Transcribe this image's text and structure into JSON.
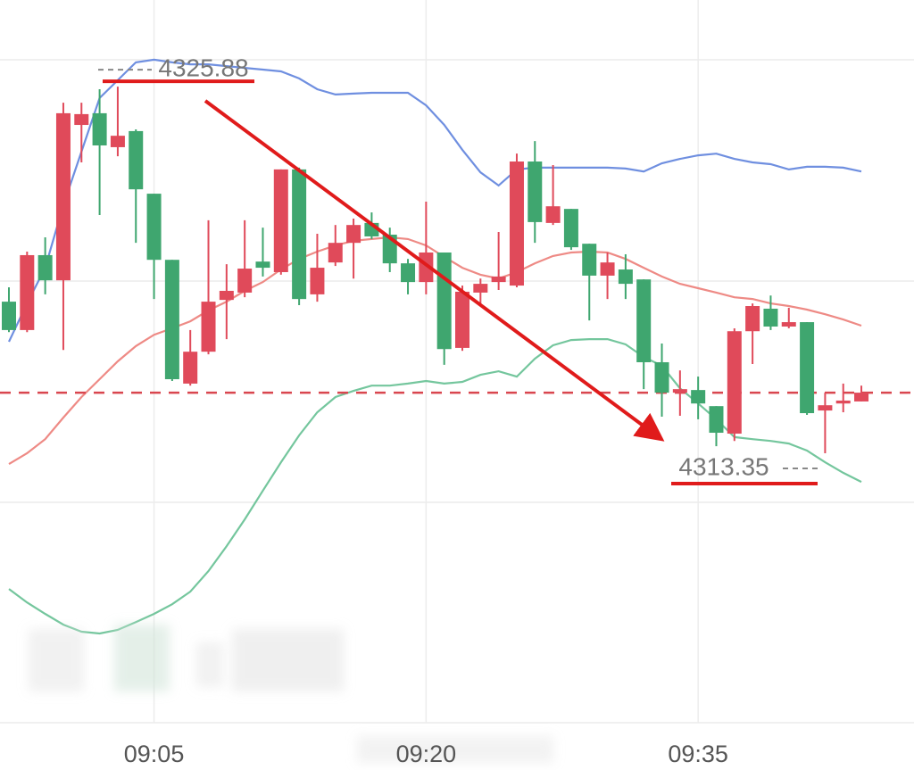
{
  "chart_data": {
    "type": "candlestick",
    "categories": [
      null,
      null,
      null,
      null,
      null,
      null,
      null,
      null,
      "09:05",
      null,
      null,
      null,
      null,
      null,
      null,
      null,
      null,
      null,
      null,
      null,
      null,
      null,
      null,
      "09:20",
      null,
      null,
      null,
      null,
      null,
      null,
      null,
      null,
      null,
      null,
      null,
      null,
      null,
      null,
      "09:35",
      null,
      null,
      null,
      null,
      null,
      null,
      null,
      null,
      null
    ],
    "open": [
      4318.53,
      4317.56,
      4320.12,
      4319.26,
      4324.57,
      4324.97,
      4323.81,
      4324.36,
      4322.22,
      4319.96,
      4315.73,
      4316.82,
      4318.59,
      4318.84,
      4319.9,
      4319.54,
      4323.05,
      4318.78,
      4319.87,
      4320.54,
      4321.22,
      4320.82,
      4319.84,
      4319.2,
      4320.21,
      4316.95,
      4318.84,
      4319.2,
      4319.08,
      4323.32,
      4321.22,
      4321.7,
      4320.51,
      4319.42,
      4319.63,
      4319.29,
      4316.46,
      4315.42,
      4315.51,
      4314.96,
      4314.02,
      4317.52,
      4318.29,
      4317.68,
      4317.83,
      4314.81,
      4315.05,
      4315.12
    ],
    "high": [
      4319.02,
      4320.24,
      4320.73,
      4325.33,
      4325.33,
      4325.79,
      4325.88,
      4324.42,
      4322.22,
      4319.96,
      4317.56,
      4321.31,
      4319.81,
      4321.31,
      4321.06,
      4323.05,
      4323.11,
      4320.85,
      4321.15,
      4321.37,
      4321.58,
      4321.06,
      4319.99,
      4321.95,
      4320.21,
      4319.08,
      4319.32,
      4320.91,
      4323.59,
      4324.02,
      4323.2,
      4321.7,
      4320.51,
      4320.21,
      4320.15,
      4319.29,
      4317.1,
      4316.18,
      4315.97,
      4314.96,
      4317.62,
      4318.47,
      4318.74,
      4318.32,
      4317.83,
      4315.42,
      4315.73,
      4315.66
    ],
    "low": [
      4317.49,
      4317.49,
      4318.78,
      4316.88,
      4323.29,
      4321.49,
      4323.5,
      4320.54,
      4318.62,
      4315.82,
      4315.66,
      4316.73,
      4317.25,
      4318.68,
      4319.39,
      4319.45,
      4318.41,
      4318.53,
      4319.75,
      4319.32,
      4320.67,
      4319.54,
      4318.78,
      4318.78,
      4316.37,
      4316.85,
      4318.47,
      4318.93,
      4319.02,
      4320.54,
      4321.15,
      4320.3,
      4317.89,
      4318.62,
      4318.62,
      4315.54,
      4314.6,
      4314.63,
      4314.51,
      4313.59,
      4313.77,
      4316.4,
      4317.56,
      4317.62,
      4314.66,
      4313.35,
      4314.75,
      4315.12
    ],
    "close": [
      4317.56,
      4320.12,
      4319.26,
      4324.97,
      4324.94,
      4323.87,
      4324.2,
      4322.37,
      4319.96,
      4315.88,
      4316.82,
      4318.53,
      4318.9,
      4319.66,
      4319.69,
      4323.05,
      4318.62,
      4319.69,
      4320.54,
      4321.15,
      4320.76,
      4319.84,
      4319.2,
      4320.21,
      4316.91,
      4318.87,
      4319.14,
      4319.39,
      4323.32,
      4321.25,
      4321.79,
      4320.39,
      4319.42,
      4319.87,
      4319.14,
      4316.46,
      4315.42,
      4315.54,
      4315.05,
      4314.05,
      4317.52,
      4318.38,
      4317.68,
      4317.83,
      4314.72,
      4314.99,
      4315.15,
      4315.42
    ],
    "up_color": "#e04a5a",
    "down_color": "#3fa66f",
    "lines": [
      {
        "color": "#6f8fe0",
        "values": [
          4317.16,
          4318.47,
          4319.69,
          4321.83,
          4323.66,
          4325.49,
          4326.1,
          4326.71,
          4326.8,
          4326.71,
          4326.64,
          4326.64,
          4326.58,
          4326.52,
          4326.46,
          4326.4,
          4326.16,
          4325.79,
          4325.61,
          4325.64,
          4325.67,
          4325.67,
          4325.67,
          4325.24,
          4324.57,
          4323.72,
          4322.95,
          4322.5,
          4323.05,
          4323.11,
          4323.11,
          4323.11,
          4323.11,
          4323.11,
          4323.08,
          4322.98,
          4323.26,
          4323.41,
          4323.53,
          4323.59,
          4323.41,
          4323.29,
          4323.23,
          4323.05,
          4323.14,
          4323.14,
          4323.11,
          4322.98
        ]
      },
      {
        "color": "#ee8a85",
        "values": [
          4312.98,
          4313.35,
          4313.83,
          4314.57,
          4315.27,
          4315.88,
          4316.49,
          4317.01,
          4317.4,
          4317.62,
          4317.86,
          4318.23,
          4318.53,
          4318.9,
          4319.2,
          4319.63,
          4319.99,
          4320.24,
          4320.45,
          4320.61,
          4320.67,
          4320.73,
          4320.67,
          4320.45,
          4320.06,
          4319.69,
          4319.45,
          4319.32,
          4319.54,
          4319.84,
          4320.09,
          4320.21,
          4320.24,
          4320.21,
          4319.99,
          4319.69,
          4319.39,
          4319.14,
          4318.99,
          4318.84,
          4318.68,
          4318.62,
          4318.47,
          4318.38,
          4318.26,
          4318.1,
          4317.92,
          4317.71
        ]
      },
      {
        "color": "#74c69d",
        "values": [
          4308.71,
          4308.25,
          4307.86,
          4307.49,
          4307.25,
          4307.19,
          4307.31,
          4307.58,
          4307.86,
          4308.19,
          4308.62,
          4309.32,
          4310.17,
          4311.09,
          4312.07,
          4313.04,
          4313.96,
          4314.75,
          4315.27,
          4315.48,
          4315.66,
          4315.66,
          4315.73,
          4315.82,
          4315.73,
          4315.79,
          4316.03,
          4316.15,
          4315.97,
          4316.58,
          4317.04,
          4317.22,
          4317.25,
          4317.25,
          4317.07,
          4316.64,
          4316.34,
          4315.57,
          4315.05,
          4314.51,
          4313.9,
          4313.83,
          4313.77,
          4313.68,
          4313.44,
          4313.04,
          4312.68,
          4312.37
        ]
      }
    ],
    "ref_line": 4315.42,
    "ref_color": "#d9464f",
    "annotations": [
      4325.88,
      4313.35
    ],
    "ylim": [
      4304.14,
      4328.84
    ]
  }
}
